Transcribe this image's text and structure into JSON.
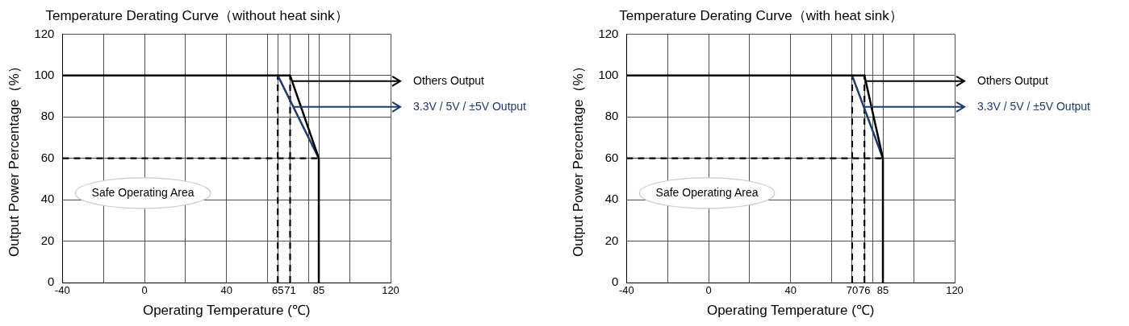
{
  "chart_data": [
    {
      "type": "line",
      "title": "Temperature Derating Curve（without heat sink）",
      "xlabel": "Operating Temperature (℃)",
      "ylabel": "Output Power Percentage（%）",
      "xlim": [
        -40,
        120
      ],
      "xticks": [
        -40,
        {
          "value": -20,
          "label": null
        },
        0,
        {
          "value": 20,
          "label": null
        },
        40,
        {
          "value": 60,
          "label": null
        },
        65,
        71,
        {
          "value": 80,
          "label": null
        },
        85,
        {
          "value": 100,
          "label": null
        },
        120
      ],
      "ylim": [
        0,
        120
      ],
      "yticks": [
        0,
        20,
        40,
        60,
        80,
        100,
        120
      ],
      "grid": true,
      "legend": "right",
      "marker": "none",
      "series": [
        {
          "name": "Others Output",
          "color": "#000000",
          "x": [
            -40,
            71,
            85,
            85
          ],
          "values": [
            100,
            100,
            60,
            0
          ]
        },
        {
          "name": "3.3V / 5V / ±5V Output",
          "color": "#1f3a6e",
          "x": [
            65,
            85
          ],
          "values": [
            100,
            60
          ]
        },
        {
          "color": "#000000",
          "line_style": "dashed",
          "x": [
            65,
            65
          ],
          "values": [
            0,
            100
          ]
        },
        {
          "color": "#000000",
          "line_style": "dashed",
          "x": [
            71,
            71
          ],
          "values": [
            0,
            100
          ]
        },
        {
          "color": "#000000",
          "line_style": "dashed",
          "x": [
            -40,
            85
          ],
          "values": [
            60,
            60
          ]
        }
      ],
      "annotations": [
        "Safe Operating Area"
      ]
    },
    {
      "type": "line",
      "title": "Temperature Derating Curve（with heat sink）",
      "xlabel": "Operating Temperature (℃)",
      "ylabel": "Output Power Percentage（%）",
      "xlim": [
        -40,
        120
      ],
      "xticks": [
        -40,
        {
          "value": -20,
          "label": null
        },
        0,
        {
          "value": 20,
          "label": null
        },
        40,
        {
          "value": 60,
          "label": null
        },
        70,
        76,
        {
          "value": 80,
          "label": null
        },
        85,
        {
          "value": 100,
          "label": null
        },
        120
      ],
      "ylim": [
        0,
        120
      ],
      "yticks": [
        0,
        20,
        40,
        60,
        80,
        100,
        120
      ],
      "grid": true,
      "legend": "right",
      "marker": "none",
      "series": [
        {
          "name": "Others Output",
          "color": "#000000",
          "x": [
            -40,
            76,
            85,
            85
          ],
          "values": [
            100,
            100,
            60,
            0
          ]
        },
        {
          "name": "3.3V / 5V / ±5V Output",
          "color": "#1f3a6e",
          "x": [
            70,
            85
          ],
          "values": [
            100,
            60
          ]
        },
        {
          "color": "#000000",
          "line_style": "dashed",
          "x": [
            70,
            70
          ],
          "values": [
            0,
            100
          ]
        },
        {
          "color": "#000000",
          "line_style": "dashed",
          "x": [
            76,
            76
          ],
          "values": [
            0,
            100
          ]
        },
        {
          "color": "#000000",
          "line_style": "dashed",
          "x": [
            -40,
            85
          ],
          "values": [
            60,
            60
          ]
        }
      ],
      "annotations": [
        "Safe Operating Area"
      ]
    }
  ]
}
